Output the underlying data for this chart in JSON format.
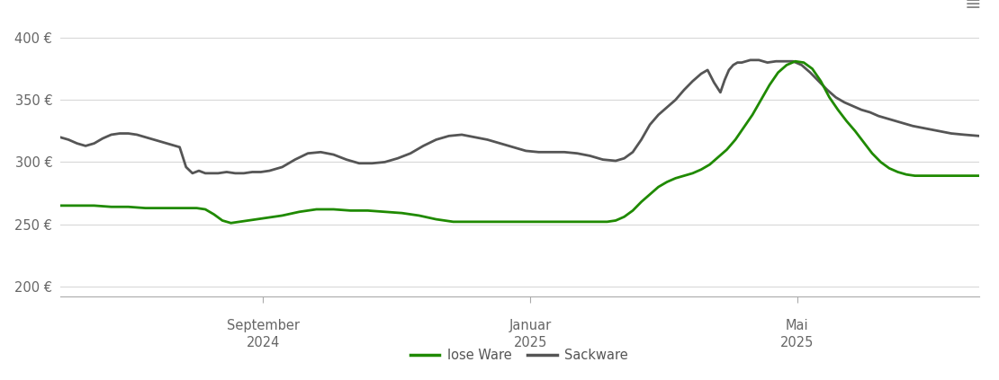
{
  "y_ticks": [
    200,
    250,
    300,
    350,
    400
  ],
  "y_labels": [
    "200 €",
    "250 €",
    "300 €",
    "350 €",
    "400 €"
  ],
  "ylim": [
    192,
    415
  ],
  "xlim": [
    0,
    430
  ],
  "x_tick_positions": [
    95,
    220,
    345
  ],
  "x_tick_labels": [
    [
      "September",
      "2024"
    ],
    [
      "Januar",
      "2025"
    ],
    [
      "Mai",
      "2025"
    ]
  ],
  "background_color": "#ffffff",
  "grid_color": "#d8d8d8",
  "lose_ware_color": "#1f8a00",
  "sackware_color": "#555555",
  "line_width": 2.0,
  "legend_labels": [
    "lose Ware",
    "Sackware"
  ],
  "lose_ware": [
    [
      0,
      265
    ],
    [
      8,
      265
    ],
    [
      16,
      265
    ],
    [
      24,
      264
    ],
    [
      32,
      264
    ],
    [
      40,
      263
    ],
    [
      48,
      263
    ],
    [
      56,
      263
    ],
    [
      64,
      263
    ],
    [
      68,
      262
    ],
    [
      72,
      258
    ],
    [
      76,
      253
    ],
    [
      80,
      251
    ],
    [
      84,
      252
    ],
    [
      88,
      253
    ],
    [
      96,
      255
    ],
    [
      104,
      257
    ],
    [
      112,
      260
    ],
    [
      120,
      262
    ],
    [
      128,
      262
    ],
    [
      136,
      261
    ],
    [
      144,
      261
    ],
    [
      152,
      260
    ],
    [
      160,
      259
    ],
    [
      168,
      257
    ],
    [
      176,
      254
    ],
    [
      184,
      252
    ],
    [
      192,
      252
    ],
    [
      200,
      252
    ],
    [
      208,
      252
    ],
    [
      216,
      252
    ],
    [
      224,
      252
    ],
    [
      232,
      252
    ],
    [
      240,
      252
    ],
    [
      248,
      252
    ],
    [
      256,
      252
    ],
    [
      260,
      253
    ],
    [
      264,
      256
    ],
    [
      268,
      261
    ],
    [
      272,
      268
    ],
    [
      276,
      274
    ],
    [
      280,
      280
    ],
    [
      284,
      284
    ],
    [
      288,
      287
    ],
    [
      292,
      289
    ],
    [
      296,
      291
    ],
    [
      300,
      294
    ],
    [
      304,
      298
    ],
    [
      308,
      304
    ],
    [
      312,
      310
    ],
    [
      316,
      318
    ],
    [
      320,
      328
    ],
    [
      324,
      338
    ],
    [
      328,
      350
    ],
    [
      332,
      362
    ],
    [
      336,
      372
    ],
    [
      340,
      378
    ],
    [
      344,
      381
    ],
    [
      348,
      380
    ],
    [
      352,
      375
    ],
    [
      356,
      365
    ],
    [
      360,
      352
    ],
    [
      364,
      342
    ],
    [
      368,
      333
    ],
    [
      372,
      325
    ],
    [
      376,
      316
    ],
    [
      380,
      307
    ],
    [
      384,
      300
    ],
    [
      388,
      295
    ],
    [
      392,
      292
    ],
    [
      396,
      290
    ],
    [
      400,
      289
    ],
    [
      410,
      289
    ],
    [
      420,
      289
    ],
    [
      430,
      289
    ]
  ],
  "sackware": [
    [
      0,
      320
    ],
    [
      4,
      318
    ],
    [
      8,
      315
    ],
    [
      12,
      313
    ],
    [
      16,
      315
    ],
    [
      20,
      319
    ],
    [
      24,
      322
    ],
    [
      28,
      323
    ],
    [
      32,
      323
    ],
    [
      36,
      322
    ],
    [
      40,
      320
    ],
    [
      44,
      318
    ],
    [
      48,
      316
    ],
    [
      52,
      314
    ],
    [
      56,
      312
    ],
    [
      59,
      296
    ],
    [
      62,
      291
    ],
    [
      65,
      293
    ],
    [
      68,
      291
    ],
    [
      71,
      291
    ],
    [
      74,
      291
    ],
    [
      78,
      292
    ],
    [
      82,
      291
    ],
    [
      86,
      291
    ],
    [
      90,
      292
    ],
    [
      94,
      292
    ],
    [
      98,
      293
    ],
    [
      104,
      296
    ],
    [
      110,
      302
    ],
    [
      116,
      307
    ],
    [
      122,
      308
    ],
    [
      128,
      306
    ],
    [
      134,
      302
    ],
    [
      140,
      299
    ],
    [
      146,
      299
    ],
    [
      152,
      300
    ],
    [
      158,
      303
    ],
    [
      164,
      307
    ],
    [
      170,
      313
    ],
    [
      176,
      318
    ],
    [
      182,
      321
    ],
    [
      188,
      322
    ],
    [
      194,
      320
    ],
    [
      200,
      318
    ],
    [
      206,
      315
    ],
    [
      212,
      312
    ],
    [
      218,
      309
    ],
    [
      224,
      308
    ],
    [
      230,
      308
    ],
    [
      236,
      308
    ],
    [
      242,
      307
    ],
    [
      248,
      305
    ],
    [
      254,
      302
    ],
    [
      260,
      301
    ],
    [
      264,
      303
    ],
    [
      268,
      308
    ],
    [
      272,
      318
    ],
    [
      276,
      330
    ],
    [
      280,
      338
    ],
    [
      284,
      344
    ],
    [
      288,
      350
    ],
    [
      292,
      358
    ],
    [
      296,
      365
    ],
    [
      300,
      371
    ],
    [
      303,
      374
    ],
    [
      306,
      364
    ],
    [
      309,
      356
    ],
    [
      311,
      366
    ],
    [
      313,
      374
    ],
    [
      315,
      378
    ],
    [
      317,
      380
    ],
    [
      319,
      380
    ],
    [
      321,
      381
    ],
    [
      323,
      382
    ],
    [
      325,
      382
    ],
    [
      327,
      382
    ],
    [
      329,
      381
    ],
    [
      331,
      380
    ],
    [
      335,
      381
    ],
    [
      339,
      381
    ],
    [
      343,
      381
    ],
    [
      347,
      378
    ],
    [
      351,
      372
    ],
    [
      355,
      365
    ],
    [
      359,
      358
    ],
    [
      363,
      352
    ],
    [
      367,
      348
    ],
    [
      371,
      345
    ],
    [
      375,
      342
    ],
    [
      379,
      340
    ],
    [
      383,
      337
    ],
    [
      387,
      335
    ],
    [
      391,
      333
    ],
    [
      395,
      331
    ],
    [
      399,
      329
    ],
    [
      405,
      327
    ],
    [
      411,
      325
    ],
    [
      417,
      323
    ],
    [
      423,
      322
    ],
    [
      430,
      321
    ]
  ]
}
